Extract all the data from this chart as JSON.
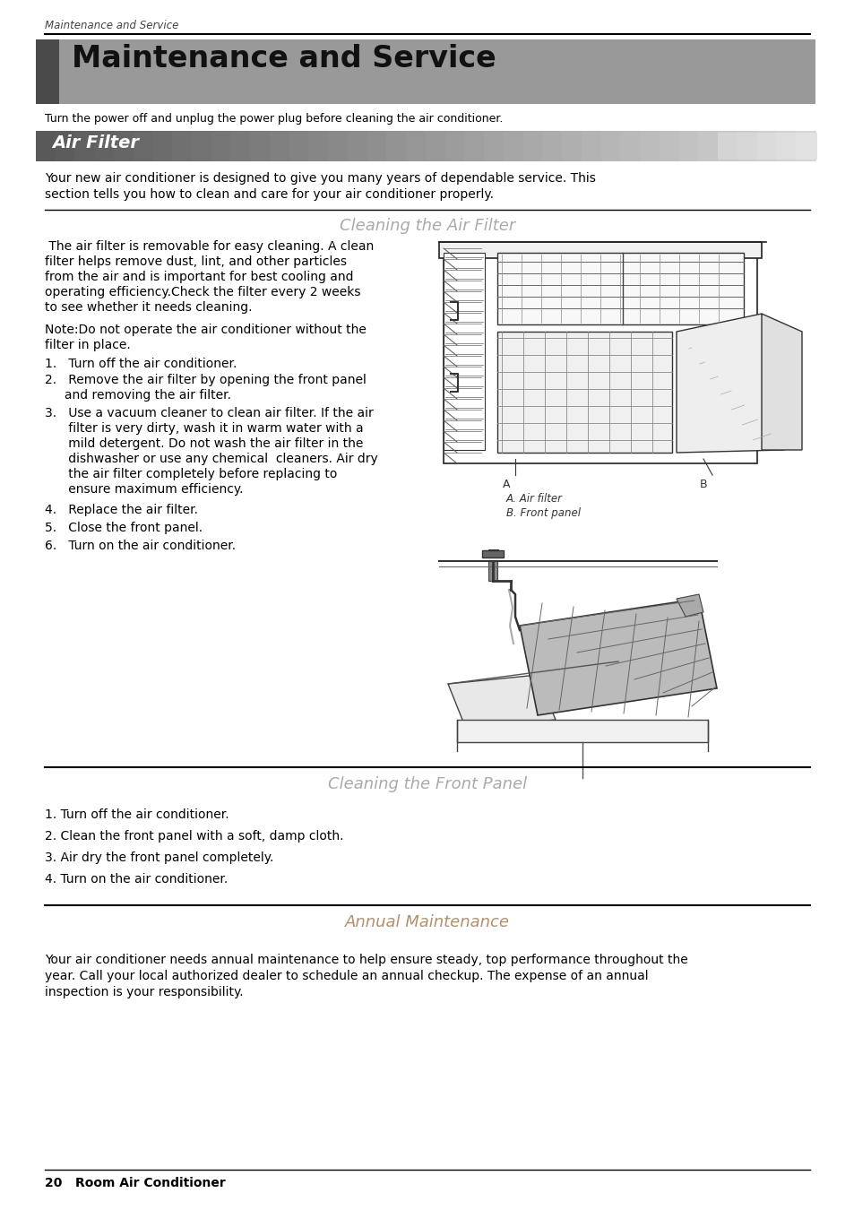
{
  "page_header": "Maintenance and Service",
  "main_title": "Maintenance and Service",
  "subtitle_note": "Turn the power off and unplug the power plug before cleaning the air conditioner.",
  "section_title": "Air Filter",
  "cleaning_filter_title": "Cleaning the Air Filter",
  "air_filter_section_intro_1": "Your new air conditioner is designed to give you many years of dependable service. This",
  "air_filter_section_intro_2": "section tells you how to clean and care for your air conditioner properly.",
  "image_caption_a": "A. Air filter",
  "image_caption_b": "B. Front panel",
  "cleaning_front_panel_title": "Cleaning the Front Panel",
  "front_panel_steps": [
    "1. Turn off the air conditioner.",
    "2. Clean the front panel with a soft, damp cloth.",
    "3. Air dry the front panel completely.",
    "4. Turn on the air conditioner."
  ],
  "annual_maintenance_title": "Annual Maintenance",
  "annual_maintenance_lines": [
    "Your air conditioner needs annual maintenance to help ensure steady, top performance throughout the",
    "year. Call your local authorized dealer to schedule an annual checkup. The expense of an annual",
    "inspection is your responsibility."
  ],
  "footer_text": "20   Room Air Conditioner",
  "bg_color": "#ffffff",
  "main_bar_color": "#999999",
  "main_bar_dark": "#555555",
  "air_filter_bar_left": "#666666",
  "air_filter_bar_right": "#cccccc",
  "text_color": "#000000",
  "section_title_color": "#aaaaaa",
  "annual_title_color": "#b09070",
  "caption_color": "#333333",
  "line_color": "#000000"
}
